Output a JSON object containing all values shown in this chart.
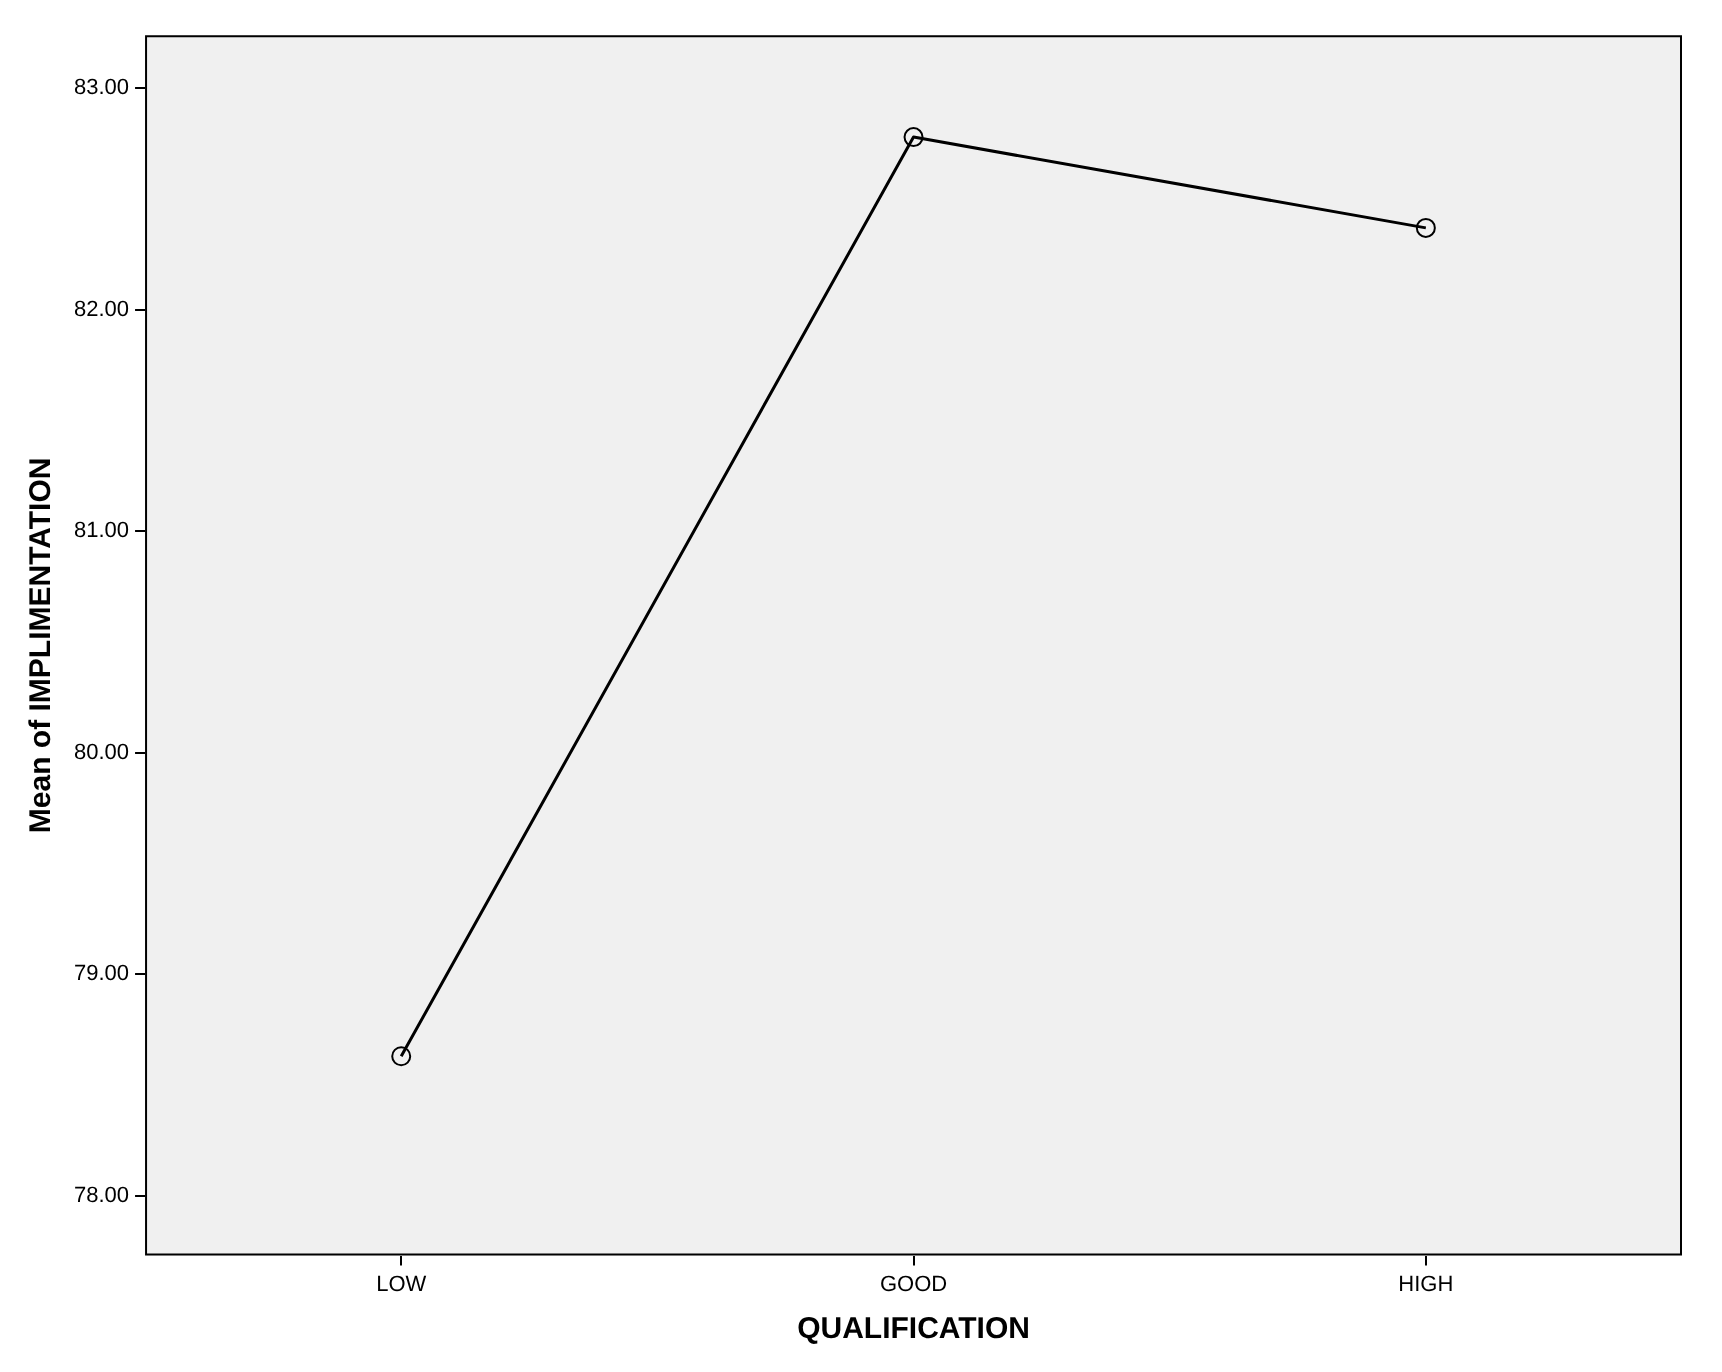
{
  "chart_data": {
    "type": "line",
    "xlabel": "QUALIFICATION",
    "ylabel": "Mean of IMPLIMENTATION",
    "categories": [
      "LOW",
      "GOOD",
      "HIGH"
    ],
    "series": [
      {
        "color": "#000000",
        "values": [
          78.63,
          82.78,
          82.37
        ]
      }
    ],
    "ylim": [
      77.73,
      83.24
    ],
    "yticks": [
      {
        "value": 78,
        "label": "78.00"
      },
      {
        "value": 79,
        "label": "79.00"
      },
      {
        "value": 80,
        "label": "80.00"
      },
      {
        "value": 81,
        "label": "81.00"
      },
      {
        "value": 82,
        "label": "82.00"
      },
      {
        "value": 83,
        "label": "83.00"
      }
    ],
    "grid": false,
    "legend": false,
    "marker": "circle",
    "line_style": "solid"
  }
}
